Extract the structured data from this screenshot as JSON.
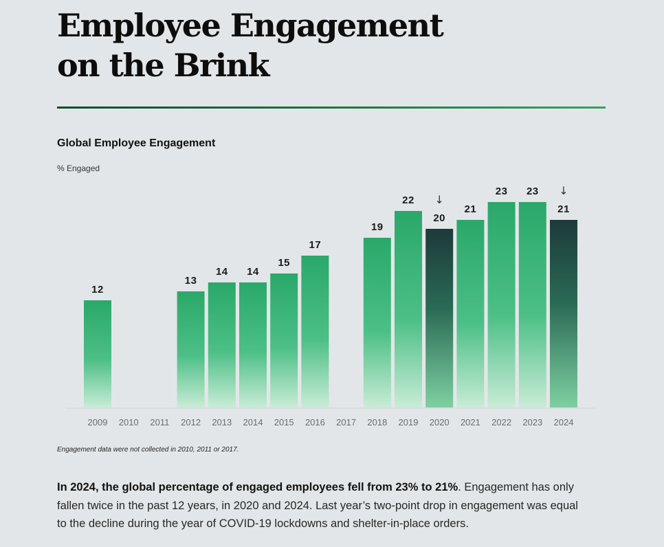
{
  "page": {
    "title_line1": "Employee Engagement",
    "title_line2": "on the Brink",
    "footnote": "Engagement data were not collected in 2010, 2011 or 2017.",
    "body_bold": "In 2024, the global percentage of engaged employees fell from 23% to 21%",
    "body_rest": ". Engagement has only fallen twice in the past 12 years, in 2020 and 2024. Last year’s two-point drop in engagement was equal to the decline during the year of COVID-19 lockdowns and shelter-in-place orders."
  },
  "colors": {
    "bar_green_top": "#2aa86a",
    "bar_green_bottom": "#c8ecd6",
    "bar_dark_top": "#1d3a3a",
    "bar_dark_bottom": "#3aa36e",
    "rule": "#1f7d45"
  },
  "chart_data": {
    "type": "bar",
    "title": "Global Employee Engagement",
    "ylabel": "% Engaged",
    "categories": [
      "2009",
      "2010",
      "2011",
      "2012",
      "2013",
      "2014",
      "2015",
      "2016",
      "2017",
      "2018",
      "2019",
      "2020",
      "2021",
      "2022",
      "2023",
      "2024"
    ],
    "values": [
      12,
      null,
      null,
      13,
      14,
      14,
      15,
      17,
      null,
      19,
      22,
      20,
      21,
      23,
      23,
      21
    ],
    "decline_years": [
      "2020",
      "2024"
    ],
    "decline_marker": "↓",
    "ylim": [
      0,
      23
    ],
    "grid": false
  }
}
